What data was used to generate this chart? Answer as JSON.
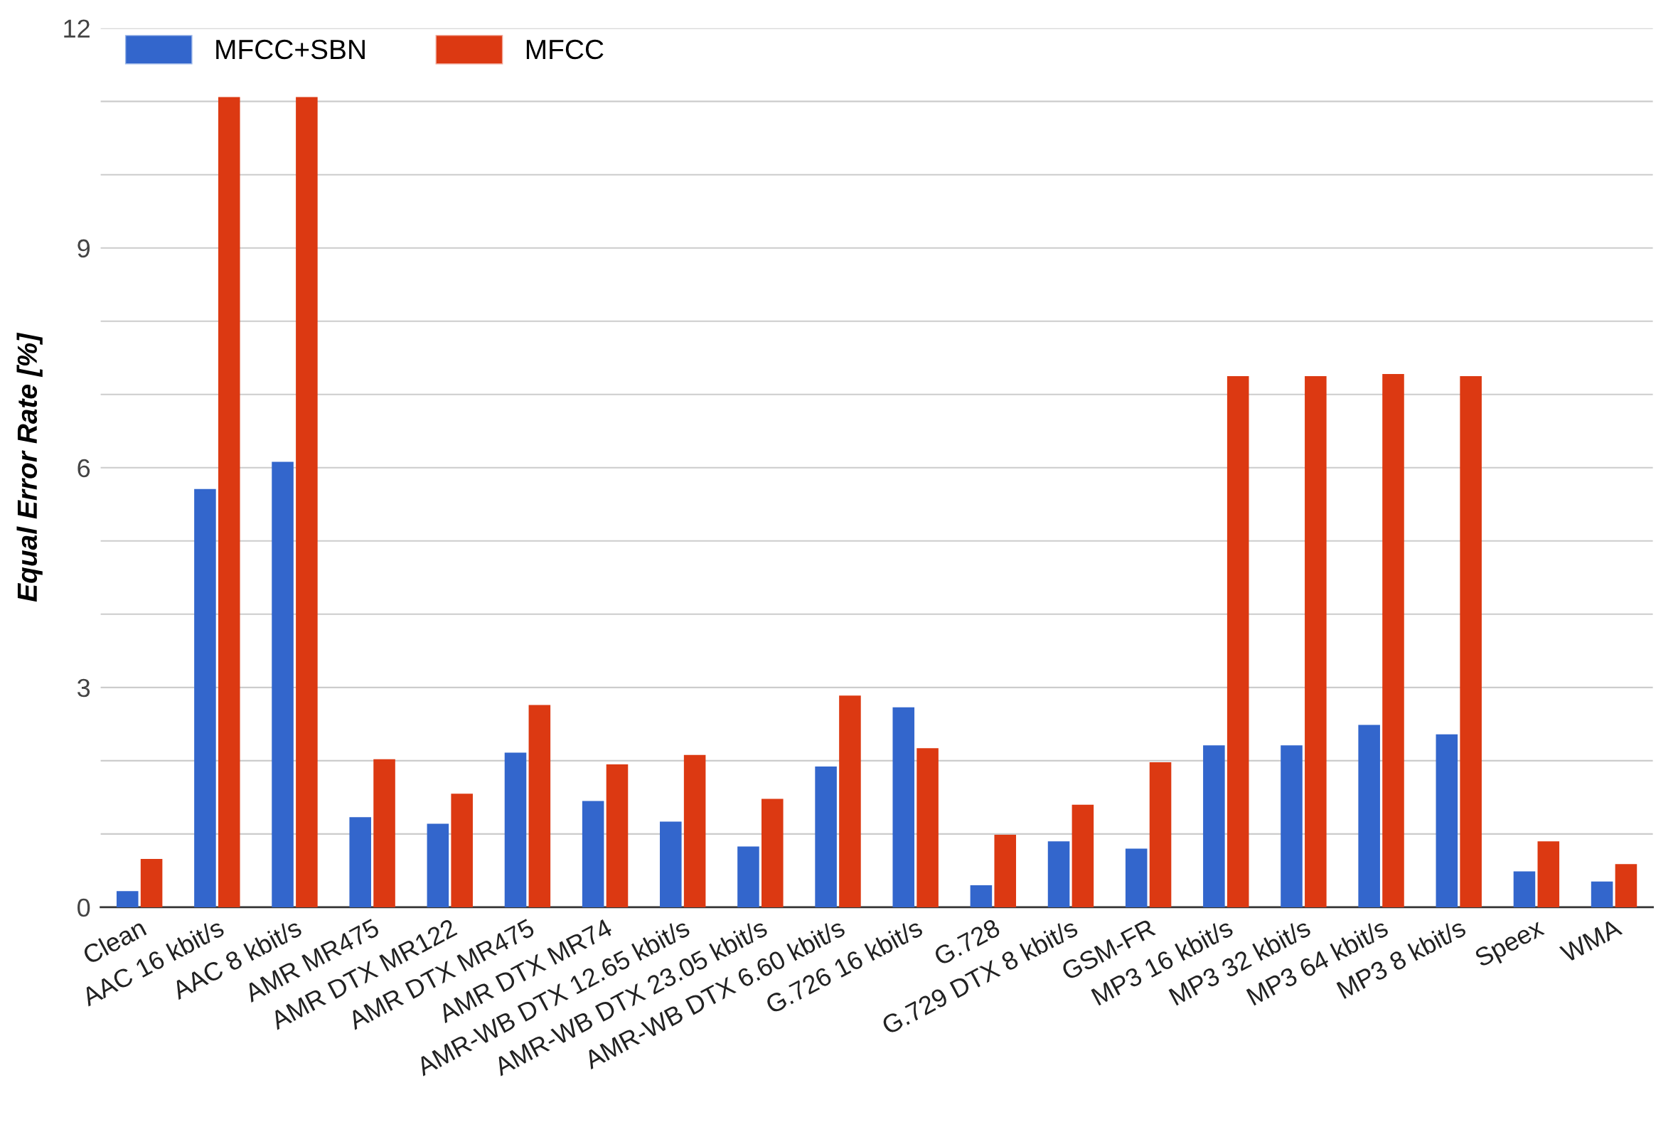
{
  "chart_data": {
    "type": "bar",
    "ylabel": "Equal Error Rate [%]",
    "categories": [
      "Clean",
      "AAC 16 kbit/s",
      "AAC 8 kbit/s",
      "AMR MR475",
      "AMR DTX MR122",
      "AMR DTX MR475",
      "AMR DTX MR74",
      "AMR-WB DTX 12.65 kbit/s",
      "AMR-WB DTX 23.05 kbit/s",
      "AMR-WB DTX 6.60 kbit/s",
      "G.726 16 kbit/s",
      "G.728",
      "G.729 DTX 8 kbit/s",
      "GSM-FR",
      "MP3 16 kbit/s",
      "MP3 32 kbit/s",
      "MP3 64 kbit/s",
      "MP3 8 kbit/s",
      "Speex",
      "WMA"
    ],
    "series": [
      {
        "name": "MFCC+SBN",
        "color": "#3366cc",
        "values": [
          0.22,
          5.71,
          6.08,
          1.23,
          1.14,
          2.11,
          1.45,
          1.17,
          0.83,
          1.92,
          2.73,
          0.3,
          0.9,
          0.8,
          2.21,
          2.21,
          2.49,
          2.36,
          0.49,
          0.35
        ]
      },
      {
        "name": "MFCC",
        "color": "#dc3912",
        "values": [
          0.66,
          11.06,
          11.06,
          2.02,
          1.55,
          2.76,
          1.95,
          2.08,
          1.48,
          2.89,
          2.17,
          0.99,
          1.4,
          1.98,
          7.25,
          7.25,
          7.28,
          7.25,
          0.9,
          0.59
        ]
      }
    ],
    "ylim": [
      0,
      12
    ],
    "yticks": [
      0,
      {
        "value": 1,
        "label": null
      },
      {
        "value": 2,
        "label": null
      },
      3,
      {
        "value": 4,
        "label": null
      },
      {
        "value": 5,
        "label": null
      },
      6,
      {
        "value": 7,
        "label": null
      },
      {
        "value": 8,
        "label": null
      },
      9,
      {
        "value": 10,
        "label": null
      },
      {
        "value": 11,
        "label": null
      },
      12
    ],
    "grid": "y",
    "legend": "top left"
  }
}
